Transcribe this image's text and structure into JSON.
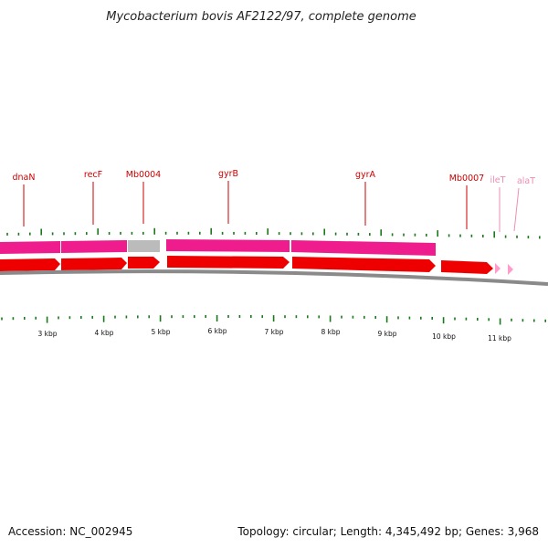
{
  "title": "Mycobacterium bovis AF2122/97, complete genome",
  "footer": {
    "accession": "Accession: NC_002945",
    "summary": "Topology: circular; Length: 4,345,492 bp; Genes: 3,968"
  },
  "colors": {
    "gene_label": "#cc0000",
    "trna_label": "#f08cb4",
    "cds_arrow": "#ee0000",
    "trna_arrow": "#ff9ccc",
    "gene_bar": "#ee1c8c",
    "gene_bar_gray": "#bbbbbb",
    "backbone": "#8a8a8a",
    "tick": "#1a7a1a"
  },
  "gene_labels": [
    {
      "name": "dnaN",
      "kind": "gene"
    },
    {
      "name": "recF",
      "kind": "gene"
    },
    {
      "name": "Mb0004",
      "kind": "gene"
    },
    {
      "name": "gyrB",
      "kind": "gene"
    },
    {
      "name": "gyrA",
      "kind": "gene"
    },
    {
      "name": "Mb0007",
      "kind": "gene"
    },
    {
      "name": "ileT",
      "kind": "tRNA"
    },
    {
      "name": "alaT",
      "kind": "tRNA"
    }
  ],
  "scale_labels": [
    "3 kbp",
    "4 kbp",
    "5 kbp",
    "6 kbp",
    "7 kbp",
    "8 kbp",
    "9 kbp",
    "10 kbp",
    "11 kbp"
  ]
}
